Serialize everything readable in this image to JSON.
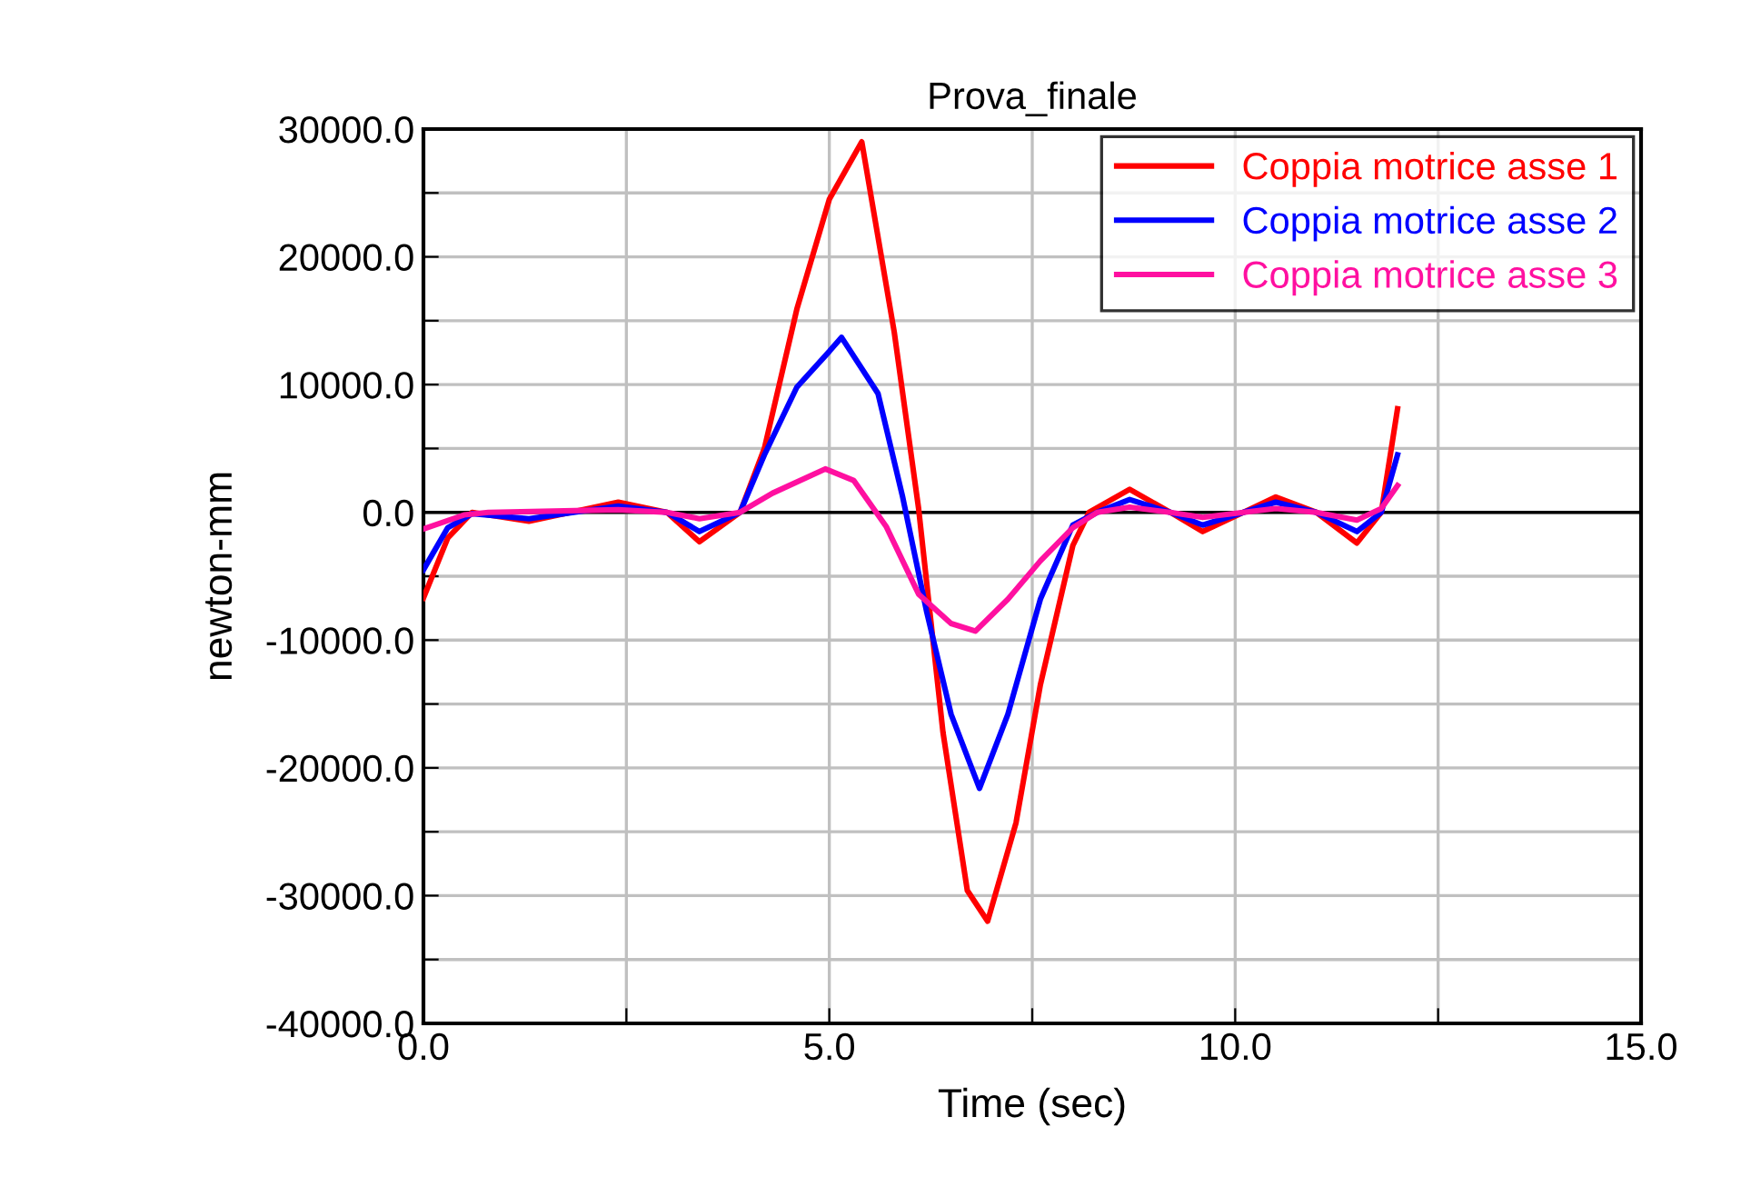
{
  "chart_data": {
    "type": "line",
    "title": "Prova_finale",
    "xlabel": "Time (sec)",
    "ylabel": "newton-mm",
    "xlim": [
      0,
      15
    ],
    "ylim": [
      -40000,
      30000
    ],
    "xticks": [
      {
        "value": 0,
        "label": "0.0"
      },
      {
        "value": 2.5,
        "label": null
      },
      {
        "value": 5,
        "label": "5.0"
      },
      {
        "value": 7.5,
        "label": null
      },
      {
        "value": 10,
        "label": "10.0"
      },
      {
        "value": 12.5,
        "label": null
      },
      {
        "value": 15,
        "label": "15.0"
      }
    ],
    "yticks": [
      {
        "value": -40000,
        "label": "-40000.0"
      },
      {
        "value": -35000,
        "label": null
      },
      {
        "value": -30000,
        "label": "-30000.0"
      },
      {
        "value": -25000,
        "label": null
      },
      {
        "value": -20000,
        "label": "-20000.0"
      },
      {
        "value": -15000,
        "label": null
      },
      {
        "value": -10000,
        "label": "-10000.0"
      },
      {
        "value": -5000,
        "label": null
      },
      {
        "value": 0,
        "label": "0.0"
      },
      {
        "value": 5000,
        "label": null
      },
      {
        "value": 10000,
        "label": "10000.0"
      },
      {
        "value": 15000,
        "label": null
      },
      {
        "value": 20000,
        "label": "20000.0"
      },
      {
        "value": 25000,
        "label": null
      },
      {
        "value": 30000,
        "label": "30000.0"
      }
    ],
    "grid": true,
    "legend": "top right",
    "marker": "none",
    "line_style": "solid",
    "ref_lines": [
      {
        "axis": "y",
        "value": 0,
        "label": null,
        "color": "#000000"
      }
    ],
    "series": [
      {
        "name": "Coppia motrice asse 1",
        "color": "#ff0000",
        "x": [
          0,
          0.3,
          0.6,
          1.3,
          2.4,
          3.0,
          3.4,
          3.9,
          4.2,
          4.6,
          5.0,
          5.4,
          5.8,
          6.1,
          6.4,
          6.7,
          6.95,
          7.3,
          7.6,
          8.0,
          8.2,
          8.7,
          9.2,
          9.6,
          10.1,
          10.5,
          11.0,
          11.5,
          11.8,
          12.0
        ],
        "values": [
          -6700,
          -2000,
          0,
          -700,
          800,
          0,
          -2300,
          0,
          5000,
          15900,
          24500,
          29000,
          14100,
          300,
          -17200,
          -29600,
          -32000,
          -24300,
          -13500,
          -2600,
          0,
          1800,
          0,
          -1500,
          0,
          1200,
          0,
          -2400,
          0,
          8100
        ]
      },
      {
        "name": "Coppia motrice asse 2",
        "color": "#0000ff",
        "x": [
          0,
          0.3,
          0.6,
          1.3,
          2.4,
          3.0,
          3.4,
          3.9,
          4.2,
          4.6,
          5.0,
          5.15,
          5.6,
          5.9,
          6.2,
          6.5,
          6.85,
          7.2,
          7.6,
          8.0,
          8.3,
          8.7,
          9.2,
          9.6,
          10.1,
          10.5,
          11.0,
          11.5,
          11.8,
          12.0
        ],
        "values": [
          -4500,
          -1200,
          -100,
          -500,
          500,
          0,
          -1500,
          0,
          4500,
          9800,
          12600,
          13700,
          9300,
          1300,
          -7800,
          -15800,
          -21600,
          -15800,
          -6800,
          -1000,
          0,
          1000,
          0,
          -1000,
          0,
          800,
          0,
          -1500,
          0,
          4500
        ]
      },
      {
        "name": "Coppia motrice asse 3",
        "color": "#ff10a0",
        "x": [
          0,
          0.5,
          0.8,
          2.4,
          3.0,
          3.4,
          3.9,
          4.3,
          4.95,
          5.3,
          5.7,
          6.1,
          6.5,
          6.8,
          7.2,
          7.6,
          8.0,
          8.3,
          8.7,
          9.2,
          9.6,
          10.1,
          10.5,
          11.0,
          11.5,
          11.8,
          12.0
        ],
        "values": [
          -1300,
          -200,
          0,
          200,
          0,
          -500,
          0,
          1500,
          3400,
          2500,
          -1100,
          -6400,
          -8700,
          -9300,
          -6800,
          -3800,
          -1200,
          0,
          400,
          0,
          -400,
          0,
          300,
          0,
          -600,
          300,
          2100
        ]
      }
    ]
  }
}
